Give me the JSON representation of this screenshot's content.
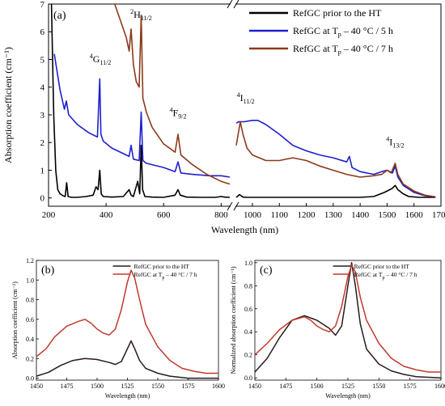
{
  "chart_data": [
    {
      "id": "a",
      "type": "line",
      "panel_label": "(a)",
      "xlabel": "Wavelength (nm)",
      "ylabel": "Absorption coefficient (cm⁻¹)",
      "xlim": [
        200,
        1700
      ],
      "axis_break": [
        830,
        940
      ],
      "ylim": [
        -0.3,
        7
      ],
      "x_ticks": [
        "200",
        "400",
        "600",
        "800",
        "1000",
        "1100",
        "1200",
        "1300",
        "1400",
        "1500",
        "1600",
        "1700"
      ],
      "y_ticks": [
        "0",
        "1",
        "2",
        "3",
        "4",
        "5",
        "6",
        "7"
      ],
      "legend_position": "top-right",
      "annotations": [
        {
          "main": "4",
          "sub": "G",
          "idx": "11/2",
          "x": 380,
          "y": 4.9
        },
        {
          "main": "2",
          "sub": "H",
          "idx": "11/2",
          "x": 522,
          "y": 6.5
        },
        {
          "main": "4",
          "sub": "F",
          "idx": "9/2",
          "x": 650,
          "y": 2.95
        },
        {
          "main": "4",
          "sub": "I",
          "idx": "11/2",
          "x": 975,
          "y": 3.5
        },
        {
          "main": "4",
          "sub": "I",
          "idx": "13/2",
          "x": 1530,
          "y": 1.9
        }
      ],
      "series": [
        {
          "name": "RefGC prior to the HT",
          "color": "#000000",
          "x": [
            210,
            218,
            225,
            232,
            240,
            250,
            258,
            263,
            268,
            280,
            300,
            330,
            355,
            365,
            372,
            378,
            383,
            390,
            420,
            460,
            480,
            487,
            495,
            510,
            517,
            522,
            527,
            535,
            560,
            600,
            640,
            650,
            658,
            680,
            730,
            780,
            800,
            812,
            830,
            940,
            952,
            965,
            980,
            1100,
            1200,
            1300,
            1400,
            1450,
            1490,
            1510,
            1520,
            1530,
            1540,
            1560,
            1580,
            1620,
            1680
          ],
          "y": [
            7.0,
            3.0,
            1.0,
            0.3,
            0.15,
            0.08,
            0.05,
            0.55,
            0.05,
            0.02,
            0.02,
            0.05,
            0.1,
            0.4,
            0.3,
            1.0,
            0.15,
            0.05,
            0.03,
            0.05,
            0.3,
            0.1,
            0.05,
            0.6,
            0.15,
            1.9,
            0.3,
            0.05,
            0.03,
            0.02,
            0.1,
            0.3,
            0.1,
            0.03,
            0.02,
            0.02,
            0.05,
            0.03,
            0.02,
            0.02,
            0.12,
            0.03,
            0.02,
            0.02,
            0.02,
            0.02,
            0.02,
            0.05,
            0.2,
            0.3,
            0.35,
            0.45,
            0.3,
            0.15,
            0.05,
            0.02,
            0.02
          ]
        },
        {
          "name": "RefGC at Tp – 40 °C / 5 h",
          "color": "#1f1fd0",
          "x": [
            220,
            240,
            255,
            262,
            270,
            300,
            340,
            370,
            378,
            382,
            390,
            420,
            460,
            480,
            487,
            495,
            515,
            522,
            528,
            540,
            600,
            640,
            650,
            660,
            700,
            760,
            800,
            830,
            940,
            950,
            970,
            1000,
            1020,
            1050,
            1100,
            1150,
            1200,
            1250,
            1300,
            1350,
            1360,
            1370,
            1400,
            1450,
            1480,
            1500,
            1520,
            1530,
            1540,
            1560,
            1600,
            1640,
            1680
          ],
          "y": [
            5.2,
            3.9,
            3.2,
            3.5,
            3.0,
            2.65,
            2.35,
            2.2,
            4.3,
            2.3,
            2.05,
            1.8,
            1.6,
            1.5,
            1.9,
            1.4,
            1.35,
            3.1,
            1.35,
            1.25,
            1.1,
            0.95,
            1.3,
            0.9,
            0.85,
            0.8,
            0.8,
            0.75,
            2.7,
            2.75,
            2.75,
            2.8,
            2.8,
            2.65,
            2.3,
            1.9,
            1.7,
            1.55,
            1.45,
            1.3,
            1.5,
            1.1,
            0.95,
            0.85,
            0.95,
            1.0,
            0.9,
            1.15,
            0.75,
            0.45,
            0.2,
            0.08,
            0.04
          ]
        },
        {
          "name": "RefGC at Tp – 40 °C / 7 h",
          "color": "#8b3a1a",
          "x": [
            430,
            450,
            470,
            480,
            487,
            495,
            505,
            515,
            522,
            528,
            540,
            560,
            600,
            640,
            650,
            660,
            700,
            750,
            800,
            830,
            940,
            955,
            965,
            980,
            1000,
            1050,
            1100,
            1150,
            1200,
            1250,
            1300,
            1350,
            1400,
            1450,
            1480,
            1500,
            1515,
            1530,
            1540,
            1560,
            1600,
            1640,
            1680
          ],
          "y": [
            7.0,
            6.4,
            5.8,
            5.3,
            6.1,
            4.8,
            4.2,
            4.0,
            6.6,
            3.6,
            3.1,
            2.55,
            1.95,
            1.65,
            2.3,
            1.55,
            1.2,
            0.85,
            0.6,
            0.5,
            1.9,
            2.75,
            2.3,
            1.8,
            1.55,
            1.35,
            1.35,
            1.45,
            1.35,
            1.15,
            1.0,
            0.85,
            0.75,
            0.8,
            0.85,
            1.0,
            0.9,
            1.25,
            0.85,
            0.5,
            0.25,
            0.1,
            0.04
          ]
        }
      ]
    },
    {
      "id": "b",
      "type": "line",
      "panel_label": "(b)",
      "xlabel": "Wavelength (nm)",
      "ylabel": "Absorption coefficient (cm⁻¹)",
      "xlim": [
        1450,
        1600
      ],
      "ylim": [
        -0.02,
        1.2
      ],
      "x_ticks": [
        "1450",
        "1475",
        "1500",
        "1525",
        "1550",
        "1575",
        "1600"
      ],
      "y_ticks": [
        "0.0",
        "0.2",
        "0.4",
        "0.6",
        "0.8",
        "1.0",
        "1.2"
      ],
      "legend_position": "top-right",
      "series": [
        {
          "name": "RefGC prior to the HT",
          "color": "#2b1a1a",
          "x": [
            1450,
            1460,
            1470,
            1480,
            1490,
            1500,
            1510,
            1515,
            1520,
            1525,
            1528,
            1531,
            1535,
            1540,
            1550,
            1560,
            1575,
            1600
          ],
          "y": [
            0.02,
            0.06,
            0.13,
            0.18,
            0.2,
            0.19,
            0.16,
            0.14,
            0.17,
            0.3,
            0.38,
            0.3,
            0.18,
            0.1,
            0.05,
            0.02,
            0.0,
            0.0
          ]
        },
        {
          "name": "RefGC at Tp – 40 °C / 7 h",
          "color": "#c0392b",
          "x": [
            1450,
            1458,
            1465,
            1475,
            1485,
            1490,
            1495,
            1500,
            1505,
            1510,
            1515,
            1520,
            1525,
            1528,
            1531,
            1535,
            1540,
            1550,
            1560,
            1570,
            1580,
            1590,
            1600
          ],
          "y": [
            0.22,
            0.3,
            0.42,
            0.53,
            0.58,
            0.6,
            0.56,
            0.5,
            0.46,
            0.44,
            0.5,
            0.7,
            0.98,
            1.1,
            1.02,
            0.8,
            0.55,
            0.32,
            0.18,
            0.1,
            0.07,
            0.05,
            0.05
          ]
        }
      ]
    },
    {
      "id": "c",
      "type": "line",
      "panel_label": "(c)",
      "xlabel": "Wavelength (nm)",
      "ylabel": "Normalized absorption coefficient (cm⁻¹)",
      "xlim": [
        1450,
        1600
      ],
      "ylim": [
        -0.02,
        1.02
      ],
      "x_ticks": [
        "1450",
        "1475",
        "1500",
        "1525",
        "1550",
        "1575",
        "1600"
      ],
      "y_ticks": [
        "0.0",
        "0.2",
        "0.4",
        "0.6",
        "0.8",
        "1.0"
      ],
      "legend_position": "top-right",
      "series": [
        {
          "name": "RefGC prior to the HT",
          "color": "#2b1a1a",
          "x": [
            1450,
            1460,
            1470,
            1480,
            1490,
            1500,
            1510,
            1515,
            1520,
            1525,
            1528,
            1531,
            1535,
            1540,
            1550,
            1560,
            1570,
            1580,
            1600
          ],
          "y": [
            0.05,
            0.17,
            0.35,
            0.5,
            0.54,
            0.5,
            0.43,
            0.37,
            0.45,
            0.8,
            1.0,
            0.8,
            0.47,
            0.25,
            0.12,
            0.06,
            0.03,
            0.01,
            0.0
          ]
        },
        {
          "name": "RefGC at Tp – 40 °C / 7 h",
          "color": "#c0392b",
          "x": [
            1450,
            1460,
            1470,
            1480,
            1490,
            1495,
            1500,
            1505,
            1510,
            1515,
            1520,
            1525,
            1528,
            1531,
            1535,
            1540,
            1550,
            1560,
            1570,
            1580,
            1590,
            1600
          ],
          "y": [
            0.2,
            0.3,
            0.42,
            0.5,
            0.53,
            0.5,
            0.45,
            0.42,
            0.4,
            0.45,
            0.62,
            0.88,
            0.98,
            0.92,
            0.7,
            0.5,
            0.3,
            0.17,
            0.1,
            0.07,
            0.05,
            0.05
          ]
        }
      ]
    }
  ]
}
